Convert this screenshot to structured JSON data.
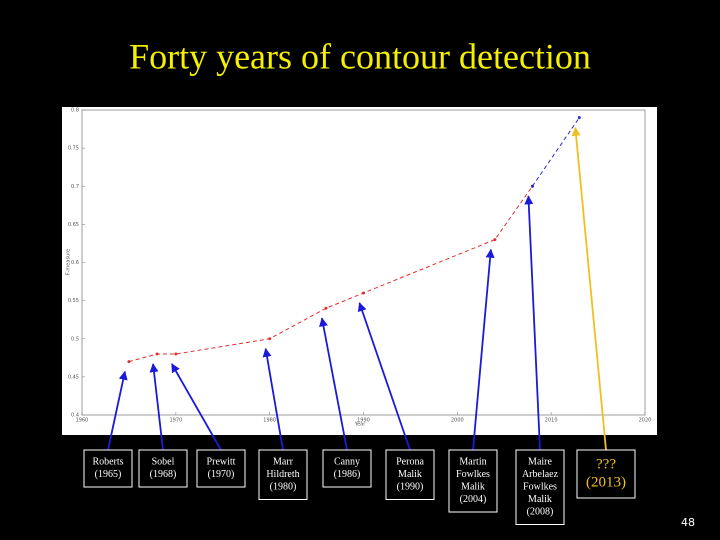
{
  "title": "Forty years of contour detection",
  "page_number": "48",
  "chart_data": {
    "type": "line",
    "x_label": "Year",
    "y_label": "F-measure",
    "x": [
      1965,
      1968,
      1970,
      1980,
      1986,
      1990,
      2004,
      2008,
      2013
    ],
    "series": [
      {
        "color": "#e03030",
        "values": [
          0.47,
          0.48,
          0.48,
          0.5,
          0.54,
          0.56,
          0.63,
          0.7,
          null
        ]
      },
      {
        "color": "#2a2ad0",
        "values": [
          null,
          null,
          null,
          null,
          null,
          null,
          null,
          0.7,
          0.79
        ]
      }
    ],
    "line_style": "dashed",
    "xlim": [
      1960,
      2020
    ],
    "xticks": [
      1960,
      1970,
      1980,
      1990,
      2000,
      2010,
      2020
    ],
    "ylim": [
      0.4,
      0.8
    ],
    "yticks": [
      0.4,
      0.45,
      0.5,
      0.55,
      0.6,
      0.65,
      0.7,
      0.75,
      0.8
    ],
    "annotations": [
      {
        "lines": [
          "Roberts",
          "(1965)"
        ],
        "color": "#1a1ad8"
      },
      {
        "lines": [
          "Sobel",
          "(1968)"
        ],
        "color": "#1a1ad8"
      },
      {
        "lines": [
          "Prewitt",
          "(1970)"
        ],
        "color": "#1a1ad8"
      },
      {
        "lines": [
          "Marr",
          "Hildreth",
          "(1980)"
        ],
        "color": "#1a1ad8"
      },
      {
        "lines": [
          "Canny",
          "(1986)"
        ],
        "color": "#1a1ad8"
      },
      {
        "lines": [
          "Perona",
          "Malik",
          "(1990)"
        ],
        "color": "#1a1ad8"
      },
      {
        "lines": [
          "Martin",
          "Fowlkes",
          "Malik",
          "(2004)"
        ],
        "color": "#1a1ad8"
      },
      {
        "lines": [
          "Maire",
          "Arbelaez",
          "Fowlkes",
          "Malik",
          "(2008)"
        ],
        "color": "#1a1ad8"
      },
      {
        "lines": [
          "???",
          "(2013)"
        ],
        "color": "#f0c020"
      }
    ]
  }
}
